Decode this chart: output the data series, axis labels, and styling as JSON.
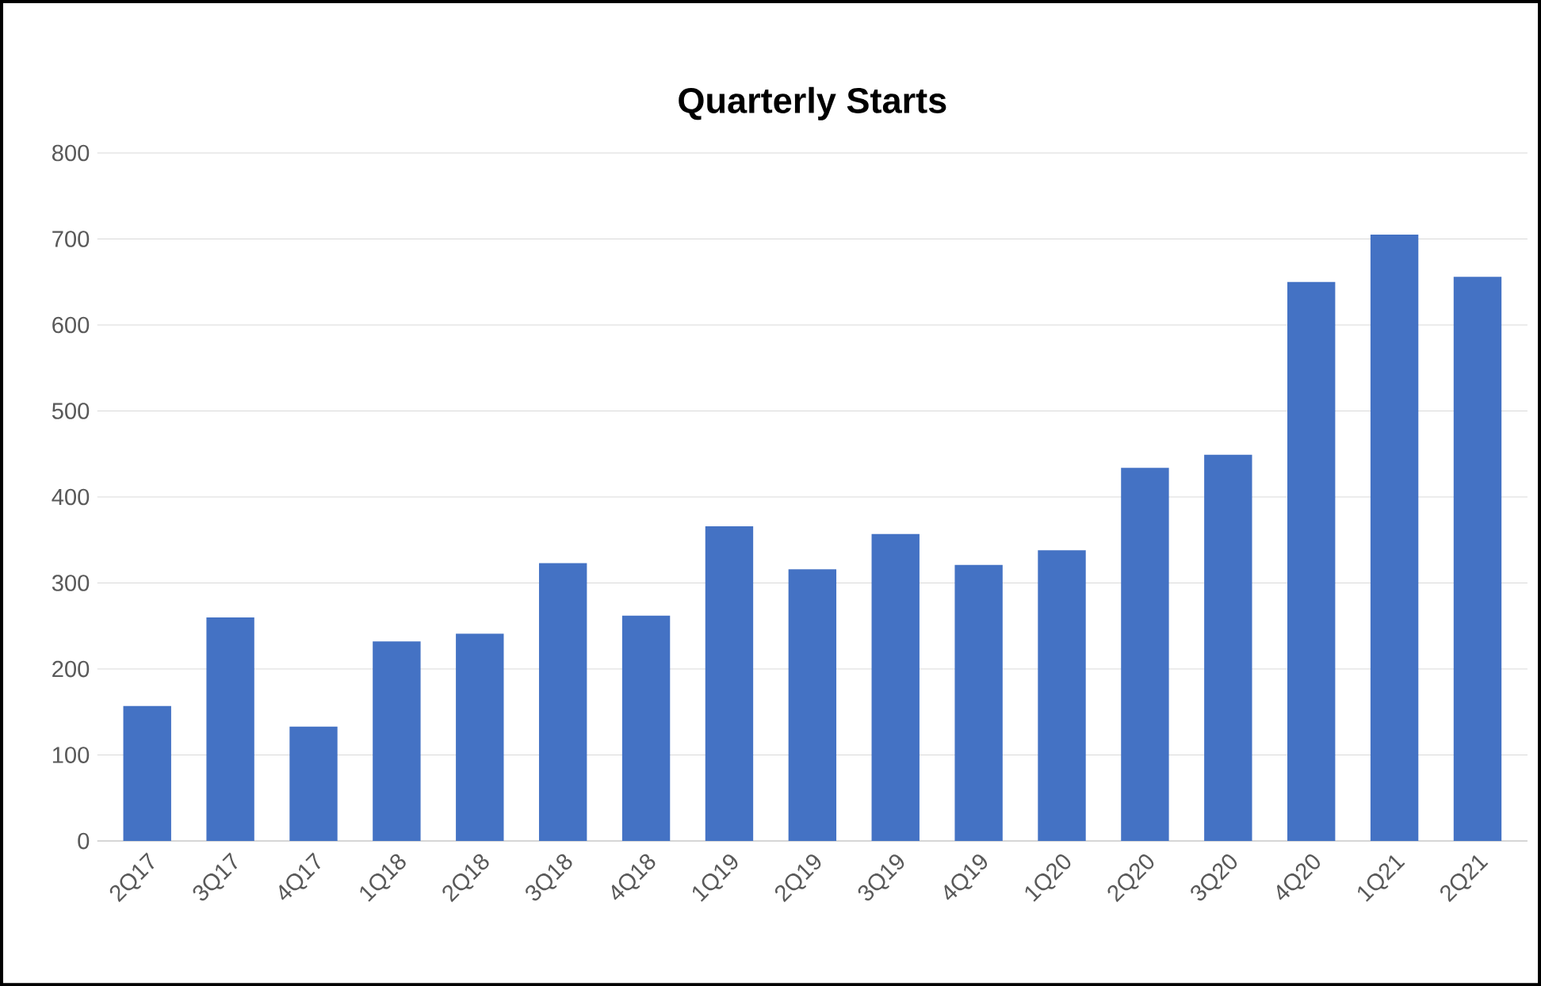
{
  "chart_data": {
    "type": "bar",
    "title": "Quarterly Starts",
    "categories": [
      "2Q17",
      "3Q17",
      "4Q17",
      "1Q18",
      "2Q18",
      "3Q18",
      "4Q18",
      "1Q19",
      "2Q19",
      "3Q19",
      "4Q19",
      "1Q20",
      "2Q20",
      "3Q20",
      "4Q20",
      "1Q21",
      "2Q21"
    ],
    "values": [
      157,
      260,
      133,
      232,
      241,
      323,
      262,
      366,
      316,
      357,
      321,
      338,
      434,
      449,
      650,
      705,
      656
    ],
    "color": "#4472c4",
    "ylim": [
      0,
      800
    ],
    "yticks": [
      0,
      100,
      200,
      300,
      400,
      500,
      600,
      700,
      800
    ],
    "grid": "y"
  }
}
